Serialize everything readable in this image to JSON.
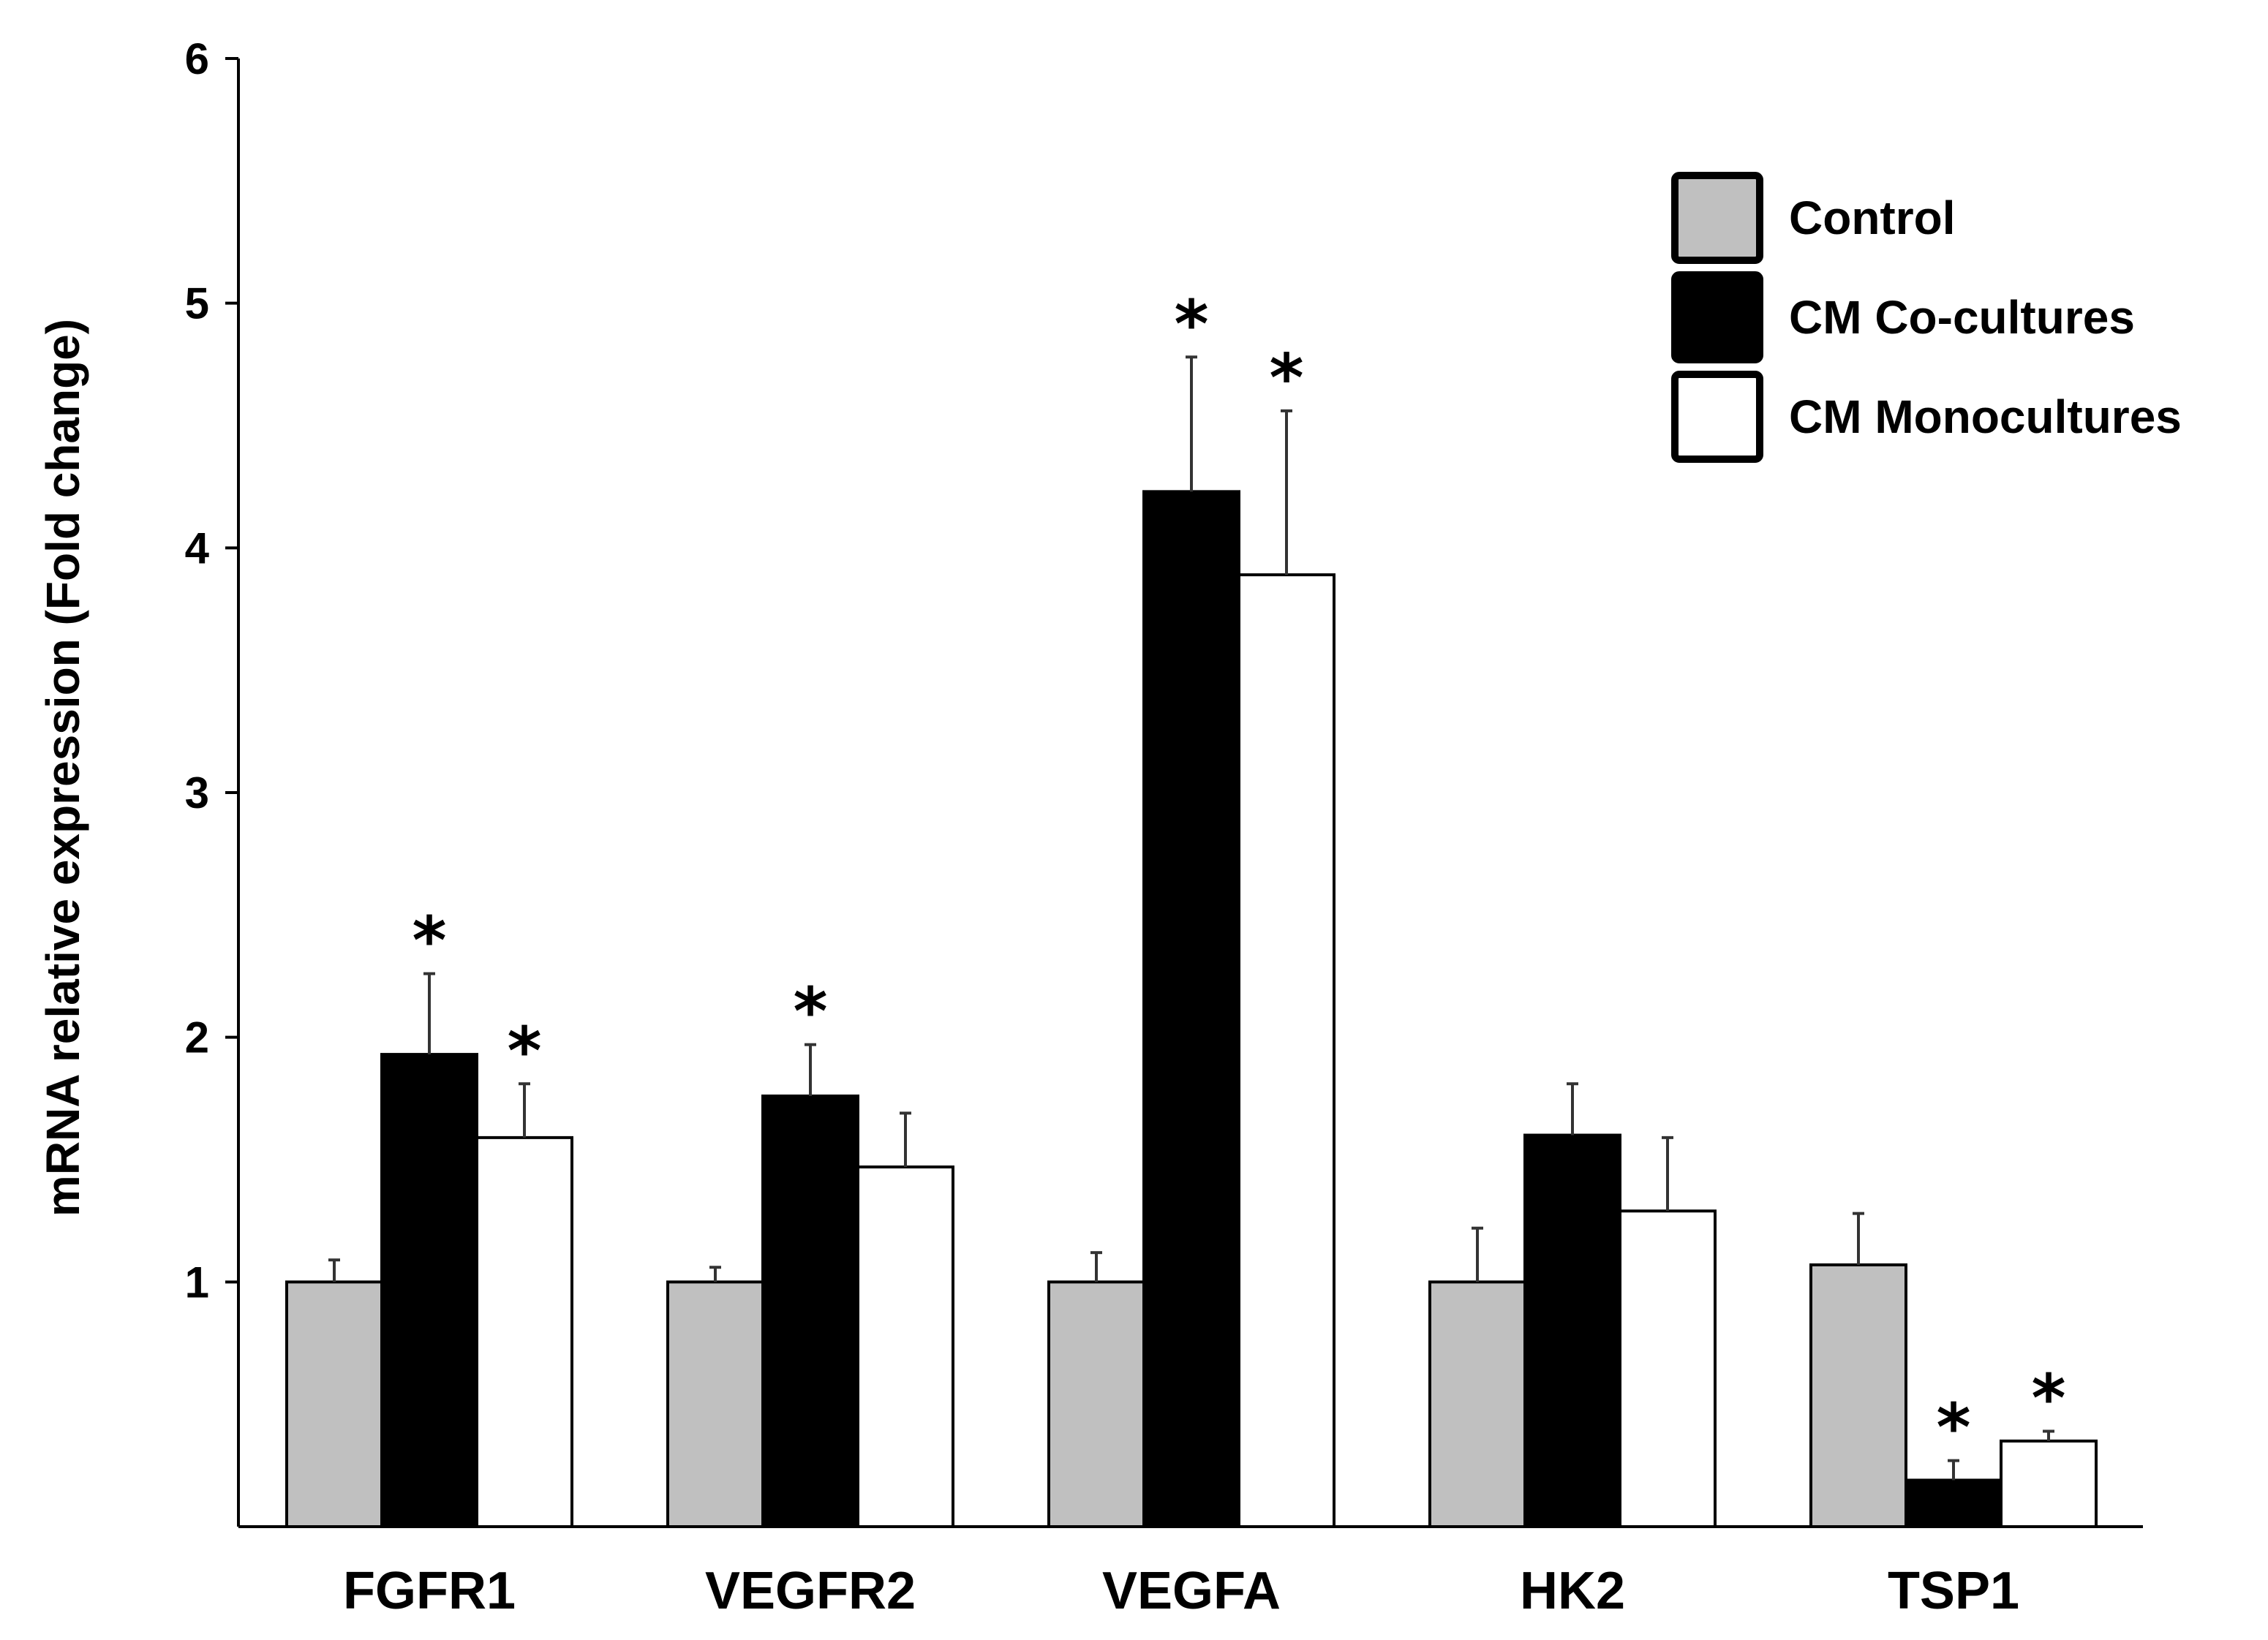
{
  "chart_data": {
    "type": "bar",
    "title": "",
    "xlabel": "",
    "ylabel": "mRNA relative expression (Fold change)",
    "ylim": [
      0,
      6
    ],
    "yticks": [
      1,
      2,
      3,
      4,
      5,
      6
    ],
    "categories": [
      "FGFR1",
      "VEGFR2",
      "VEGFA",
      "HK2",
      "TSP1"
    ],
    "series": [
      {
        "name": "Control",
        "color": "#c0c0c0",
        "values": [
          1.0,
          1.0,
          1.0,
          1.0,
          1.07
        ],
        "errors": [
          0.09,
          0.06,
          0.12,
          0.22,
          0.21
        ],
        "significant": [
          false,
          false,
          false,
          false,
          false
        ]
      },
      {
        "name": "CM Co-cultures",
        "color": "#000000",
        "values": [
          1.93,
          1.76,
          4.23,
          1.6,
          0.19
        ],
        "errors": [
          0.33,
          0.21,
          0.55,
          0.21,
          0.08
        ],
        "significant": [
          true,
          true,
          true,
          false,
          true
        ]
      },
      {
        "name": "CM Monocultures",
        "color": "#ffffff",
        "values": [
          1.59,
          1.47,
          3.89,
          1.29,
          0.35
        ],
        "errors": [
          0.22,
          0.22,
          0.67,
          0.3,
          0.04
        ],
        "significant": [
          true,
          false,
          true,
          false,
          true
        ]
      }
    ],
    "significance_marker": "*",
    "legend_position": "top-right"
  }
}
